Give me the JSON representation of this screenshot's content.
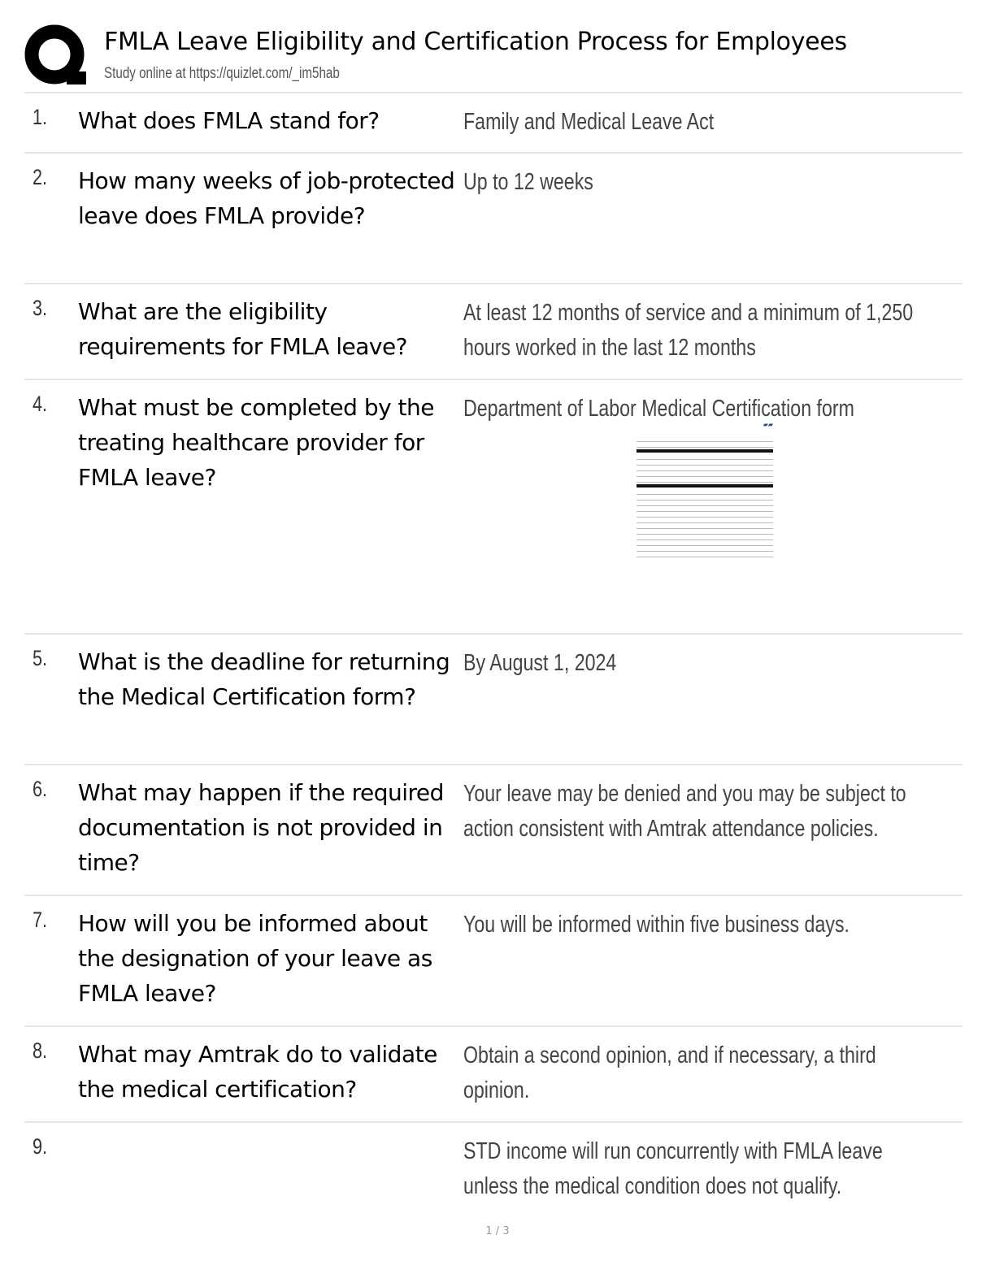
{
  "header": {
    "title": "FMLA Leave Eligibility and Certification Process for Employees",
    "subtitle": "Study online at https://quizlet.com/_im5hab",
    "logo": "Q"
  },
  "cards": [
    {
      "num": "1.",
      "q": "What does FMLA stand for?",
      "a": "Family and Medical Leave Act"
    },
    {
      "num": "2.",
      "q": "How many weeks of job-protected leave does FMLA provide?",
      "a": "Up to 12 weeks"
    },
    {
      "num": "3.",
      "q": "What are the eligibility requirements for FMLA leave?",
      "a": "At least 12 months of service and a minimum of 1,250 hours worked in the last 12 months"
    },
    {
      "num": "4.",
      "q": "What must be completed by the treating healthcare provider for FMLA leave?",
      "a": "Department of Labor Medical Certification form",
      "image": "medical-certification-form-thumbnail"
    },
    {
      "num": "5.",
      "q": "What is the deadline for returning the Medical Certification form?",
      "a": "By August 1, 2024"
    },
    {
      "num": "6.",
      "q": "What may happen if the required documentation is not provided in time?",
      "a": "Your leave may be denied and you may be subject to action consistent with Amtrak attendance policies."
    },
    {
      "num": "7.",
      "q": "How will you be informed about the designation of your leave as FMLA leave?",
      "a": "You will be informed within five business days."
    },
    {
      "num": "8.",
      "q": "What may Amtrak do to validate the medical certification?",
      "a": "Obtain a second opinion, and if necessary, a third opinion."
    },
    {
      "num": "9.",
      "q": "",
      "a": "STD income will run concurrently with FMLA leave unless the medical condition does not qualify."
    }
  ],
  "footer": {
    "page": "1 / 3"
  }
}
